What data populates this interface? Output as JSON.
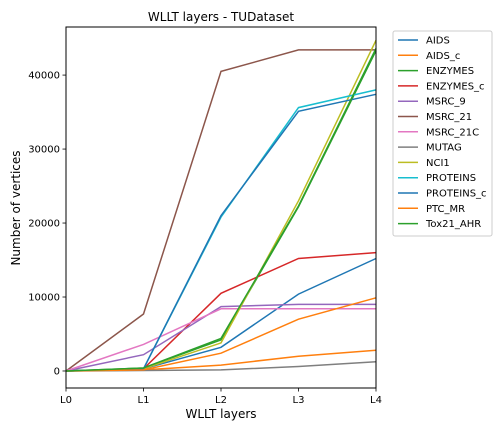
{
  "chart_data": {
    "type": "line",
    "title": "WLLT layers - TUDataset",
    "xlabel": "WLLT layers",
    "ylabel": "Number of vertices",
    "categories": [
      "L0",
      "L1",
      "L2",
      "L3",
      "L4"
    ],
    "ylim": [
      -2300,
      46500
    ],
    "yticks": [
      0,
      10000,
      20000,
      30000,
      40000
    ],
    "grid": false,
    "legend_placement": "outside-right",
    "series": [
      {
        "name": "AIDS",
        "color": "#1f77b4",
        "values": [
          0,
          300,
          3200,
          10400,
          15200
        ]
      },
      {
        "name": "AIDS_c",
        "color": "#ff7f0e",
        "values": [
          0,
          150,
          800,
          2000,
          2800
        ]
      },
      {
        "name": "ENZYMES",
        "color": "#2ca02c",
        "values": [
          0,
          400,
          4200,
          22200,
          43300
        ]
      },
      {
        "name": "ENZYMES_c",
        "color": "#d62728",
        "values": [
          0,
          300,
          10500,
          15200,
          16000
        ]
      },
      {
        "name": "MSRC_9",
        "color": "#9467bd",
        "values": [
          0,
          2200,
          8700,
          9000,
          9000
        ]
      },
      {
        "name": "MSRC_21",
        "color": "#8c564b",
        "values": [
          0,
          7700,
          40500,
          43400,
          43400
        ]
      },
      {
        "name": "MSRC_21C",
        "color": "#e377c2",
        "values": [
          0,
          3600,
          8400,
          8400,
          8400
        ]
      },
      {
        "name": "MUTAG",
        "color": "#7f7f7f",
        "values": [
          0,
          60,
          150,
          600,
          1250
        ]
      },
      {
        "name": "NCI1",
        "color": "#bcbd22",
        "values": [
          0,
          300,
          3800,
          23000,
          44700
        ]
      },
      {
        "name": "PROTEINS",
        "color": "#17becf",
        "values": [
          0,
          300,
          20800,
          35600,
          38000
        ]
      },
      {
        "name": "PROTEINS_c",
        "color": "#1f77b4",
        "values": [
          0,
          300,
          21000,
          35100,
          37400
        ]
      },
      {
        "name": "PTC_MR",
        "color": "#ff7f0e",
        "values": [
          0,
          150,
          2400,
          7000,
          9900
        ]
      },
      {
        "name": "Tox21_AHR",
        "color": "#2ca02c",
        "values": [
          0,
          400,
          4400,
          22300,
          43600
        ]
      }
    ]
  }
}
